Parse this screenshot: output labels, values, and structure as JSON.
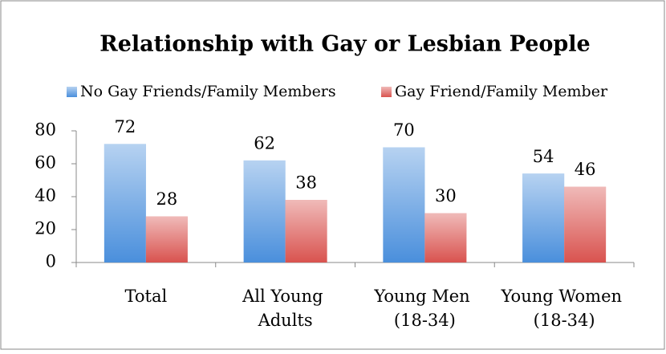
{
  "chart_data": {
    "type": "bar",
    "title": "Relationship with Gay or Lesbian People",
    "categories": [
      "Total",
      "All Young Adults",
      "Young Men (18-34)",
      "Young Women (18-34)"
    ],
    "series": [
      {
        "name": "No Gay Friends/Family Members",
        "color": "#4a8fdc",
        "values": [
          72,
          62,
          70,
          54
        ]
      },
      {
        "name": "Gay Friend/Family Member",
        "color": "#d9534f",
        "values": [
          28,
          38,
          30,
          46
        ]
      }
    ],
    "ylim": [
      0,
      80
    ],
    "yticks": [
      0,
      20,
      40,
      60,
      80
    ],
    "grid": false,
    "legend": "top"
  }
}
